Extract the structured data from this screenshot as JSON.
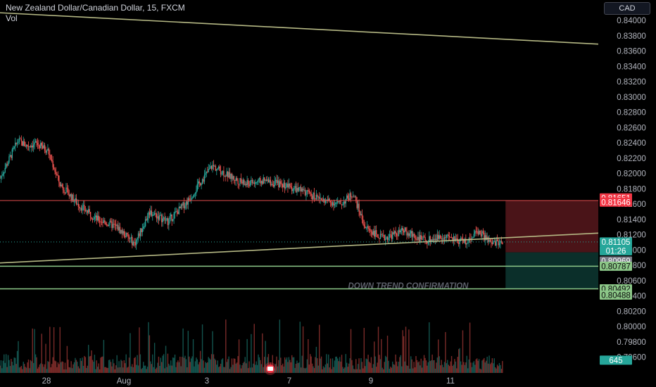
{
  "header": {
    "symbol": "New Zealand Dollar/Canadian Dollar, 15, FXCM",
    "vol_label": "Vol"
  },
  "currency_button": "CAD",
  "annotation_text": "DOWN TREND CONFIRMATION",
  "colors": {
    "background": "#000000",
    "up": "#26a69a",
    "down": "#ef5350",
    "trendline": "#b5b884",
    "support_line": "#8cc788",
    "resistance_line": "#e04c4c",
    "stop_zone": "#4a1418",
    "target_zone": "#0b2f2a",
    "axis_text": "#b2b5be",
    "annotation": "#5d606b"
  },
  "chart_data": {
    "type": "candlestick",
    "title": "New Zealand Dollar/Canadian Dollar, 15, FXCM",
    "y_ticks": [
      "0.84000",
      "0.83800",
      "0.83600",
      "0.83400",
      "0.83200",
      "0.83000",
      "0.82800",
      "0.82600",
      "0.82400",
      "0.82200",
      "0.82000",
      "0.81800",
      "0.81600",
      "0.81400",
      "0.81200",
      "0.81000",
      "0.80800",
      "0.80600",
      "0.80400",
      "0.80200",
      "0.80000",
      "0.79800",
      "0.79600"
    ],
    "x_ticks": [
      "28",
      "Aug",
      "3",
      "7",
      "9",
      "11"
    ],
    "ylim": [
      0.7955,
      0.8417
    ],
    "price_path": [
      [
        0.0,
        0.8194
      ],
      [
        1.5,
        0.8218
      ],
      [
        3.0,
        0.8243
      ],
      [
        4.5,
        0.8236
      ],
      [
        6.0,
        0.8239
      ],
      [
        8.0,
        0.823
      ],
      [
        10.0,
        0.8186
      ],
      [
        13.0,
        0.816
      ],
      [
        16.0,
        0.8141
      ],
      [
        19.5,
        0.813
      ],
      [
        22.5,
        0.8108
      ],
      [
        25.0,
        0.815
      ],
      [
        28.0,
        0.8137
      ],
      [
        31.5,
        0.8165
      ],
      [
        33.5,
        0.8189
      ],
      [
        35.5,
        0.821
      ],
      [
        38.0,
        0.8198
      ],
      [
        41.0,
        0.8186
      ],
      [
        44.0,
        0.819
      ],
      [
        47.5,
        0.8185
      ],
      [
        51.0,
        0.8175
      ],
      [
        54.0,
        0.8165
      ],
      [
        57.0,
        0.816
      ],
      [
        59.0,
        0.8174
      ],
      [
        61.0,
        0.813
      ],
      [
        64.0,
        0.8115
      ],
      [
        67.5,
        0.8125
      ],
      [
        71.0,
        0.8112
      ],
      [
        74.0,
        0.8118
      ],
      [
        77.5,
        0.811
      ],
      [
        80.0,
        0.8125
      ],
      [
        82.0,
        0.8108
      ],
      [
        84.0,
        0.8111
      ]
    ],
    "x_range": [
      0,
      100
    ],
    "last_bar_x": 84.0,
    "trendline_upper": [
      [
        0,
        0.841
      ],
      [
        100,
        0.8369
      ]
    ],
    "trendline_lower": [
      [
        0,
        0.8083
      ],
      [
        100,
        0.8122
      ]
    ],
    "horizontal_lines": [
      {
        "price": 0.81646,
        "kind": "resistance"
      },
      {
        "price": 0.80787,
        "kind": "support"
      },
      {
        "price": 0.80492,
        "kind": "support"
      }
    ],
    "position": {
      "x_start": 84.5,
      "x_end": 111,
      "entry": 0.80969,
      "stop": 0.81646,
      "target": 0.80492
    },
    "price_labels": [
      {
        "text": "0.81651",
        "price": 0.8168,
        "color": "#f23645"
      },
      {
        "text": "0.81646",
        "price": 0.81625,
        "color": "#f23645"
      },
      {
        "text": "0.81105",
        "price": 0.81105,
        "color": "#26a69a"
      },
      {
        "text": "01:26",
        "price": 0.8099,
        "color": "#26a69a"
      },
      {
        "text": "0.80969",
        "price": 0.80855,
        "color": "#787b86"
      },
      {
        "text": "0.80787",
        "price": 0.80787,
        "color": "#8cc788"
      },
      {
        "text": "0.80492",
        "price": 0.80492,
        "color": "#8cc788"
      },
      {
        "text": "0.80488",
        "price": 0.8041,
        "color": "#8cc788"
      },
      {
        "text": "645",
        "price": 0.7956,
        "color": "#26a69a"
      }
    ]
  }
}
